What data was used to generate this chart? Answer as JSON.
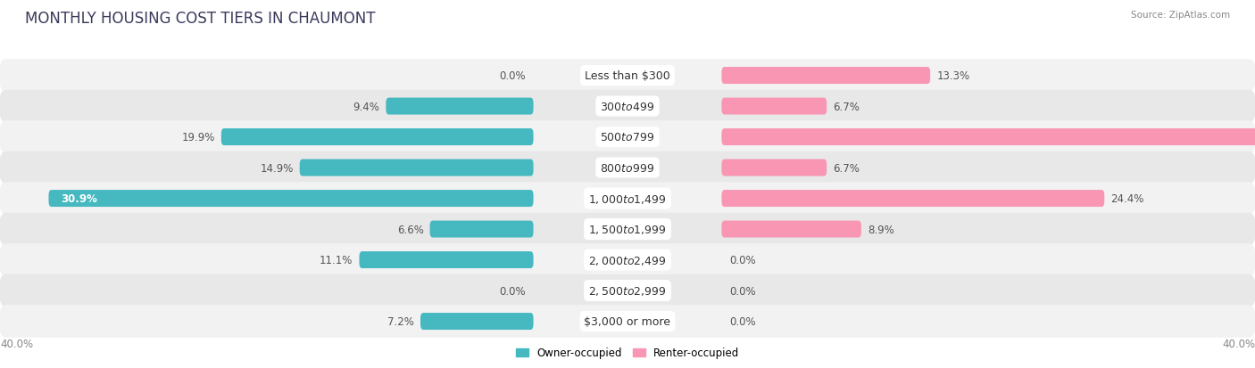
{
  "title": "MONTHLY HOUSING COST TIERS IN CHAUMONT",
  "source": "Source: ZipAtlas.com",
  "categories": [
    "Less than $300",
    "$300 to $499",
    "$500 to $799",
    "$800 to $999",
    "$1,000 to $1,499",
    "$1,500 to $1,999",
    "$2,000 to $2,499",
    "$2,500 to $2,999",
    "$3,000 or more"
  ],
  "owner_values": [
    0.0,
    9.4,
    19.9,
    14.9,
    30.9,
    6.6,
    11.1,
    0.0,
    7.2
  ],
  "renter_values": [
    13.3,
    6.7,
    40.0,
    6.7,
    24.4,
    8.9,
    0.0,
    0.0,
    0.0
  ],
  "owner_color": "#45B8C0",
  "owner_color_dark": "#2E9EA8",
  "renter_color": "#F896B4",
  "renter_color_light": "#FAB8CC",
  "row_colors": [
    "#F2F2F2",
    "#E8E8E8"
  ],
  "max_value": 40.0,
  "bar_height": 0.55,
  "label_fontsize": 8.5,
  "category_fontsize": 9.0,
  "title_fontsize": 12,
  "source_fontsize": 7.5,
  "x_axis_label": "40.0%"
}
